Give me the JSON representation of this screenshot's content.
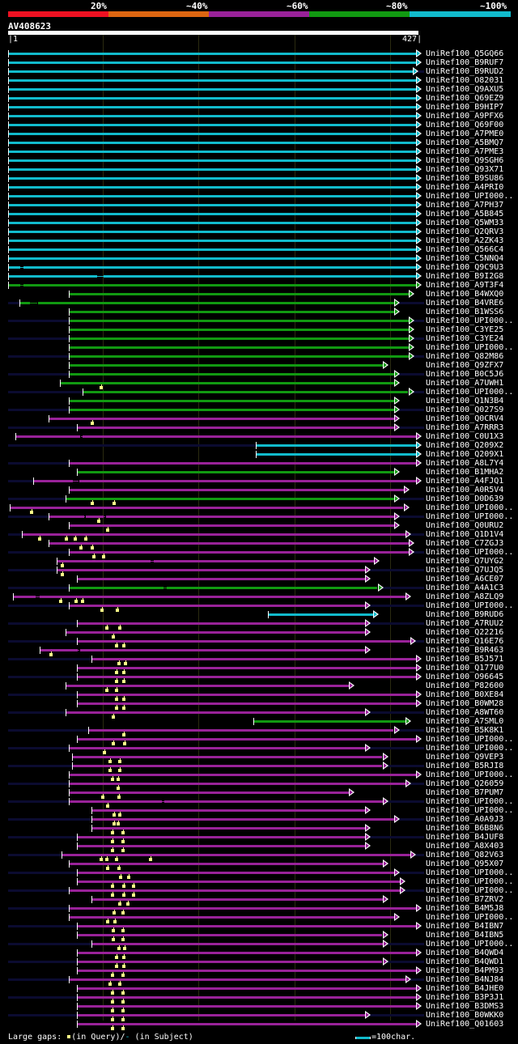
{
  "legend": {
    "labels": [
      "20%",
      "~40%",
      "~60%",
      "~80%",
      "~100%"
    ],
    "colors": [
      "#ee1122",
      "#dd6611",
      "#992299",
      "#119911",
      "#11bbcc"
    ]
  },
  "query": {
    "name": "AV408623",
    "start": "1",
    "end": "427",
    "length": 427
  },
  "footer": {
    "gaps_label": "Large gaps:",
    "query_label": "(in Query)/",
    "subject_dash": "-",
    "subject_label": " (in Subject)",
    "scale_label": "=100char."
  },
  "hits": [
    {
      "label": "UniRef100_Q5GQ66",
      "c": 4,
      "s": 1,
      "e": 427,
      "x": true
    },
    {
      "label": "UniRef100_B9RUF7",
      "c": 4,
      "s": 1,
      "e": 427,
      "x": false
    },
    {
      "label": "UniRef100_B9RUD2",
      "c": 4,
      "s": 1,
      "e": 424,
      "x": true
    },
    {
      "label": "UniRef100_O82031",
      "c": 4,
      "s": 1,
      "e": 427,
      "x": false
    },
    {
      "label": "UniRef100_Q9AXU5",
      "c": 4,
      "s": 1,
      "e": 427,
      "x": true
    },
    {
      "label": "UniRef100_Q69EZ9",
      "c": 4,
      "s": 1,
      "e": 427,
      "x": false
    },
    {
      "label": "UniRef100_B9HIP7",
      "c": 4,
      "s": 1,
      "e": 427,
      "x": true
    },
    {
      "label": "UniRef100_A9PFX6",
      "c": 4,
      "s": 1,
      "e": 427,
      "x": false
    },
    {
      "label": "UniRef100_Q69F00",
      "c": 4,
      "s": 1,
      "e": 427,
      "x": true
    },
    {
      "label": "UniRef100_A7PME0",
      "c": 4,
      "s": 1,
      "e": 427,
      "x": false
    },
    {
      "label": "UniRef100_A5BMQ7",
      "c": 4,
      "s": 1,
      "e": 427,
      "x": true
    },
    {
      "label": "UniRef100_A7PME3",
      "c": 4,
      "s": 1,
      "e": 427,
      "x": false
    },
    {
      "label": "UniRef100_Q9SGH6",
      "c": 4,
      "s": 1,
      "e": 427,
      "x": true
    },
    {
      "label": "UniRef100_Q93X71",
      "c": 4,
      "s": 1,
      "e": 427,
      "x": false
    },
    {
      "label": "UniRef100_B9SU86",
      "c": 4,
      "s": 1,
      "e": 427,
      "x": true
    },
    {
      "label": "UniRef100_A4PRI0",
      "c": 4,
      "s": 1,
      "e": 427,
      "x": false
    },
    {
      "label": "UniRef100_UPI000..",
      "c": 4,
      "s": 1,
      "e": 427,
      "x": true
    },
    {
      "label": "UniRef100_A7PH37",
      "c": 4,
      "s": 1,
      "e": 427,
      "x": false
    },
    {
      "label": "UniRef100_A5B845",
      "c": 4,
      "s": 1,
      "e": 427,
      "x": true
    },
    {
      "label": "UniRef100_Q5WM33",
      "c": 4,
      "s": 1,
      "e": 427,
      "x": false
    },
    {
      "label": "UniRef100_Q2QRV3",
      "c": 4,
      "s": 1,
      "e": 427,
      "x": true
    },
    {
      "label": "UniRef100_A2ZK43",
      "c": 4,
      "s": 1,
      "e": 427,
      "x": false
    },
    {
      "label": "UniRef100_Q566C4",
      "c": 4,
      "s": 1,
      "e": 427,
      "x": true
    },
    {
      "label": "UniRef100_C5NNQ4",
      "c": 4,
      "s": 1,
      "e": 427,
      "x": false
    },
    {
      "label": "UniRef100_Q9C9U3",
      "c": 4,
      "s": 1,
      "e": 427,
      "x": true,
      "sg": [
        14,
        17
      ]
    },
    {
      "label": "UniRef100_B9I2G8",
      "c": 4,
      "s": 1,
      "e": 427,
      "x": false,
      "sg": [
        94,
        101
      ]
    },
    {
      "label": "UniRef100_A9T3F4",
      "c": 3,
      "s": 1,
      "e": 427,
      "x": true,
      "sg": [
        14,
        17
      ]
    },
    {
      "label": "UniRef100_B4WXQ0",
      "c": 3,
      "s": 64,
      "e": 419,
      "x": false
    },
    {
      "label": "UniRef100_B4VRE6",
      "c": 3,
      "s": 13,
      "e": 404,
      "x": true,
      "sg": [
        24,
        32
      ]
    },
    {
      "label": "UniRef100_B1WSS6",
      "c": 3,
      "s": 64,
      "e": 404,
      "x": false
    },
    {
      "label": "UniRef100_UPI000..",
      "c": 3,
      "s": 64,
      "e": 419,
      "x": true
    },
    {
      "label": "UniRef100_C3YE25",
      "c": 3,
      "s": 64,
      "e": 419,
      "x": false
    },
    {
      "label": "UniRef100_C3YE24",
      "c": 3,
      "s": 64,
      "e": 419,
      "x": true
    },
    {
      "label": "UniRef100_UPI000..",
      "c": 3,
      "s": 64,
      "e": 419,
      "x": false
    },
    {
      "label": "UniRef100_Q82M86",
      "c": 3,
      "s": 64,
      "e": 419,
      "x": true
    },
    {
      "label": "UniRef100_Q9ZFX7",
      "c": 3,
      "s": 64,
      "e": 392,
      "x": false
    },
    {
      "label": "UniRef100_B0C5J6",
      "c": 3,
      "s": 64,
      "e": 404,
      "x": true
    },
    {
      "label": "UniRef100_A7UWH1",
      "c": 3,
      "s": 55,
      "e": 404,
      "x": false,
      "qg": [
        97
      ]
    },
    {
      "label": "UniRef100_UPI000..",
      "c": 3,
      "s": 79,
      "e": 419,
      "x": true
    },
    {
      "label": "UniRef100_Q1N3B4",
      "c": 3,
      "s": 64,
      "e": 404,
      "x": false
    },
    {
      "label": "UniRef100_Q027S9",
      "c": 3,
      "s": 64,
      "e": 404,
      "x": true
    },
    {
      "label": "UniRef100_Q0CRV4",
      "c": 2,
      "s": 43,
      "e": 404,
      "x": false,
      "qg": [
        88
      ]
    },
    {
      "label": "UniRef100_A7RRR3",
      "c": 2,
      "s": 73,
      "e": 404,
      "x": true
    },
    {
      "label": "UniRef100_C0U1X3",
      "c": 2,
      "s": 9,
      "e": 427,
      "x": false,
      "sg": [
        77,
        79
      ]
    },
    {
      "label": "UniRef100_Q209X2",
      "c": 4,
      "s": 260,
      "e": 427,
      "x": true
    },
    {
      "label": "UniRef100_Q209X1",
      "c": 4,
      "s": 260,
      "e": 427,
      "x": false
    },
    {
      "label": "UniRef100_A8L7Y4",
      "c": 2,
      "s": 64,
      "e": 427,
      "x": true
    },
    {
      "label": "UniRef100_B1MHA2",
      "c": 3,
      "s": 73,
      "e": 404,
      "x": false
    },
    {
      "label": "UniRef100_A4FJQ1",
      "c": 2,
      "s": 27,
      "e": 427,
      "x": true,
      "sg": [
        68,
        75
      ]
    },
    {
      "label": "UniRef100_A0R5V4",
      "c": 2,
      "s": 64,
      "e": 414,
      "x": false
    },
    {
      "label": "UniRef100_D0D639",
      "c": 3,
      "s": 61,
      "e": 404,
      "x": true,
      "qg": [
        88,
        111
      ]
    },
    {
      "label": "UniRef100_UPI000..",
      "c": 2,
      "s": 3,
      "e": 414,
      "x": false,
      "qg": [
        25
      ]
    },
    {
      "label": "UniRef100_UPI000..",
      "c": 2,
      "s": 43,
      "e": 404,
      "x": true,
      "sg": [
        80,
        82,
        101,
        103
      ],
      "qg": [
        95
      ]
    },
    {
      "label": "UniRef100_Q0URU2",
      "c": 2,
      "s": 64,
      "e": 404,
      "x": false,
      "qg": [
        104
      ]
    },
    {
      "label": "UniRef100_Q1D1V4",
      "c": 2,
      "s": 15,
      "e": 416,
      "x": true,
      "qg": [
        33,
        61,
        70,
        81
      ]
    },
    {
      "label": "UniRef100_C7ZGJ3",
      "c": 2,
      "s": 43,
      "e": 419,
      "x": false,
      "qg": [
        76,
        88
      ]
    },
    {
      "label": "UniRef100_UPI000..",
      "c": 2,
      "s": 64,
      "e": 419,
      "x": true,
      "qg": [
        90,
        100
      ]
    },
    {
      "label": "UniRef100_Q7UYG2",
      "c": 2,
      "s": 52,
      "e": 383,
      "x": false,
      "sg": [
        150,
        153
      ],
      "qg": [
        57
      ]
    },
    {
      "label": "UniRef100_Q7UJQ5",
      "c": 2,
      "s": 52,
      "e": 374,
      "x": true,
      "qg": [
        57
      ]
    },
    {
      "label": "UniRef100_A6CE07",
      "c": 2,
      "s": 73,
      "e": 374,
      "x": false
    },
    {
      "label": "UniRef100_A4A1C3",
      "c": 3,
      "s": 64,
      "e": 387,
      "x": true,
      "sg": [
        163,
        167
      ]
    },
    {
      "label": "UniRef100_A8ZLQ9",
      "c": 2,
      "s": 6,
      "e": 416,
      "x": false,
      "sg": [
        30,
        34
      ],
      "qg": [
        55,
        71,
        78
      ]
    },
    {
      "label": "UniRef100_UPI000..",
      "c": 2,
      "s": 64,
      "e": 374,
      "x": true,
      "qg": [
        98,
        114
      ]
    },
    {
      "label": "UniRef100_B9RUD6",
      "c": 4,
      "s": 272,
      "e": 382,
      "x": false
    },
    {
      "label": "UniRef100_A7RUU2",
      "c": 2,
      "s": 73,
      "e": 374,
      "x": true,
      "qg": [
        103,
        117
      ]
    },
    {
      "label": "UniRef100_Q22216",
      "c": 2,
      "s": 61,
      "e": 374,
      "x": false,
      "qg": [
        110
      ]
    },
    {
      "label": "UniRef100_Q16E76",
      "c": 2,
      "s": 73,
      "e": 421,
      "x": true,
      "qg": [
        113,
        121
      ]
    },
    {
      "label": "UniRef100_B9R463",
      "c": 2,
      "s": 34,
      "e": 374,
      "x": false,
      "sg": [
        74,
        76
      ],
      "qg": [
        45
      ]
    },
    {
      "label": "UniRef100_B5J571",
      "c": 2,
      "s": 88,
      "e": 427,
      "x": true,
      "qg": [
        116,
        123
      ]
    },
    {
      "label": "UniRef100_Q177U0",
      "c": 2,
      "s": 73,
      "e": 427,
      "x": false,
      "qg": [
        113,
        121
      ]
    },
    {
      "label": "UniRef100_O96645",
      "c": 2,
      "s": 73,
      "e": 427,
      "x": true,
      "qg": [
        113,
        121
      ]
    },
    {
      "label": "UniRef100_P82600",
      "c": 2,
      "s": 61,
      "e": 357,
      "x": false,
      "qg": [
        103,
        113
      ]
    },
    {
      "label": "UniRef100_B0XE84",
      "c": 2,
      "s": 73,
      "e": 427,
      "x": true,
      "qg": [
        113,
        121
      ]
    },
    {
      "label": "UniRef100_B0WM28",
      "c": 2,
      "s": 73,
      "e": 427,
      "x": false,
      "qg": [
        113,
        121
      ]
    },
    {
      "label": "UniRef100_A8WT60",
      "c": 2,
      "s": 61,
      "e": 374,
      "x": true,
      "qg": [
        110
      ]
    },
    {
      "label": "UniRef100_A7SML0",
      "c": 3,
      "s": 257,
      "e": 416,
      "x": false
    },
    {
      "label": "UniRef100_B5K8K1",
      "c": 2,
      "s": 85,
      "e": 404,
      "x": true,
      "qg": [
        121
      ]
    },
    {
      "label": "UniRef100_UPI000..",
      "c": 2,
      "s": 73,
      "e": 427,
      "x": false,
      "qg": [
        110,
        122
      ]
    },
    {
      "label": "UniRef100_UPI000..",
      "c": 2,
      "s": 64,
      "e": 374,
      "x": true,
      "qg": [
        101
      ]
    },
    {
      "label": "UniRef100_Q9VEP3",
      "c": 2,
      "s": 68,
      "e": 392,
      "x": false,
      "qg": [
        107,
        117
      ]
    },
    {
      "label": "UniRef100_B5RJI8",
      "c": 2,
      "s": 68,
      "e": 392,
      "x": true,
      "qg": [
        107,
        117
      ]
    },
    {
      "label": "UniRef100_UPI000..",
      "c": 2,
      "s": 64,
      "e": 427,
      "x": false,
      "qg": [
        109,
        115
      ]
    },
    {
      "label": "UniRef100_Q26059",
      "c": 2,
      "s": 64,
      "e": 416,
      "x": true,
      "qg": [
        115
      ]
    },
    {
      "label": "UniRef100_B7PUM7",
      "c": 2,
      "s": 64,
      "e": 357,
      "x": false,
      "qg": [
        99,
        116
      ]
    },
    {
      "label": "UniRef100_UPI000..",
      "c": 2,
      "s": 64,
      "e": 392,
      "x": true,
      "sg": [
        161,
        164
      ],
      "qg": [
        104
      ]
    },
    {
      "label": "UniRef100_UPI000..",
      "c": 2,
      "s": 88,
      "e": 374,
      "x": false,
      "qg": [
        111,
        117
      ]
    },
    {
      "label": "UniRef100_A0A9J3",
      "c": 2,
      "s": 88,
      "e": 404,
      "x": true,
      "qg": [
        111,
        115
      ]
    },
    {
      "label": "UniRef100_B6B8N6",
      "c": 2,
      "s": 88,
      "e": 374,
      "x": false,
      "qg": [
        109,
        120
      ]
    },
    {
      "label": "UniRef100_B4JUF8",
      "c": 2,
      "s": 73,
      "e": 374,
      "x": true,
      "qg": [
        109,
        120
      ]
    },
    {
      "label": "UniRef100_A8X403",
      "c": 2,
      "s": 73,
      "e": 374,
      "x": false,
      "qg": [
        109,
        120
      ]
    },
    {
      "label": "UniRef100_Q82V63",
      "c": 2,
      "s": 57,
      "e": 421,
      "x": true,
      "qg": [
        97,
        103,
        113,
        149
      ]
    },
    {
      "label": "UniRef100_Q95X07",
      "c": 2,
      "s": 64,
      "e": 392,
      "x": false,
      "qg": [
        104,
        116
      ]
    },
    {
      "label": "UniRef100_UPI000..",
      "c": 2,
      "s": 73,
      "e": 404,
      "x": true,
      "qg": [
        118,
        126
      ]
    },
    {
      "label": "UniRef100_UPI000..",
      "c": 2,
      "s": 73,
      "e": 410,
      "x": false,
      "qg": [
        109,
        121,
        131
      ]
    },
    {
      "label": "UniRef100_UPI000..",
      "c": 2,
      "s": 64,
      "e": 410,
      "x": true,
      "qg": [
        109,
        121,
        131
      ]
    },
    {
      "label": "UniRef100_B7ZRV2",
      "c": 2,
      "s": 88,
      "e": 392,
      "x": false,
      "qg": [
        117,
        125
      ]
    },
    {
      "label": "UniRef100_B4M5J8",
      "c": 2,
      "s": 64,
      "e": 427,
      "x": true,
      "qg": [
        111,
        120
      ]
    },
    {
      "label": "UniRef100_UPI000..",
      "c": 2,
      "s": 64,
      "e": 404,
      "x": false,
      "qg": [
        104,
        112
      ]
    },
    {
      "label": "UniRef100_B4IBN7",
      "c": 2,
      "s": 73,
      "e": 427,
      "x": true,
      "qg": [
        110,
        120
      ]
    },
    {
      "label": "UniRef100_B4IBN5",
      "c": 2,
      "s": 73,
      "e": 392,
      "x": false,
      "qg": [
        110,
        120
      ]
    },
    {
      "label": "UniRef100_UPI000..",
      "c": 2,
      "s": 88,
      "e": 392,
      "x": true,
      "qg": [
        116,
        122
      ]
    },
    {
      "label": "UniRef100_B4QWD4",
      "c": 2,
      "s": 73,
      "e": 427,
      "x": false,
      "qg": [
        113,
        121
      ]
    },
    {
      "label": "UniRef100_B4QWD1",
      "c": 2,
      "s": 73,
      "e": 392,
      "x": true,
      "qg": [
        113,
        121
      ]
    },
    {
      "label": "UniRef100_B4PM93",
      "c": 2,
      "s": 73,
      "e": 427,
      "x": false,
      "qg": [
        109,
        120
      ]
    },
    {
      "label": "UniRef100_B4NJ84",
      "c": 2,
      "s": 64,
      "e": 416,
      "x": true,
      "qg": [
        107,
        117
      ]
    },
    {
      "label": "UniRef100_B4JHE0",
      "c": 2,
      "s": 73,
      "e": 427,
      "x": false,
      "qg": [
        109,
        120
      ]
    },
    {
      "label": "UniRef100_B3P3J1",
      "c": 2,
      "s": 73,
      "e": 427,
      "x": true,
      "qg": [
        109,
        120
      ]
    },
    {
      "label": "UniRef100_B3DMS3",
      "c": 2,
      "s": 73,
      "e": 427,
      "x": false,
      "qg": [
        109,
        120
      ]
    },
    {
      "label": "UniRef100_B0WKK0",
      "c": 2,
      "s": 73,
      "e": 374,
      "x": true,
      "qg": [
        109,
        120
      ]
    },
    {
      "label": "UniRef100_Q01603",
      "c": 2,
      "s": 73,
      "e": 427,
      "x": false,
      "qg": [
        109,
        120
      ]
    }
  ]
}
